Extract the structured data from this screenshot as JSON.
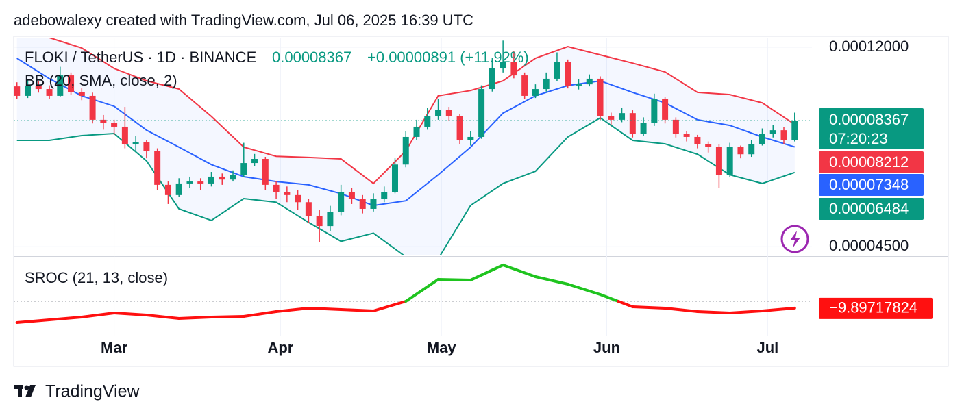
{
  "header": {
    "attribution": "adebowalexy created with TradingView.com, Jul 06, 2025 16:39 UTC",
    "symbol": "FLOKI / TetherUS · 1D · BINANCE",
    "price": 8.367e-05,
    "change": "+0.00000891 (+11.92%)",
    "countdown": "07:20:23"
  },
  "footer": {
    "brand": "TradingView"
  },
  "chart_data": {
    "type": "candlestick",
    "log_scale": true,
    "up_color": "#089981",
    "down_color": "#f23645",
    "xlim": [
      -0.3,
      73.6
    ],
    "ylim": [
      4.31e-05,
      0.0001258
    ],
    "yticks": [
      {
        "value": 0.00012,
        "label": "0.00012000"
      },
      {
        "value": 4.5e-05,
        "label": "0.00004500"
      }
    ],
    "xticks": [
      {
        "value": 9.0,
        "label": "Mar"
      },
      {
        "value": 24.4,
        "label": "Apr"
      },
      {
        "value": 39.3,
        "label": "May"
      },
      {
        "value": 54.6,
        "label": "Jun"
      },
      {
        "value": 69.5,
        "label": "Jul"
      }
    ],
    "candles": [
      [
        9.9e-05,
        0.000101,
        9.3e-05,
        9.45e-05
      ],
      [
        9.45e-05,
        0.000102,
        9.35e-05,
        9.94e-05
      ],
      [
        9.94e-05,
        0.0001015,
        9.6e-05,
        9.77e-05
      ],
      [
        9.77e-05,
        9.95e-05,
        9.3e-05,
        9.45e-05
      ],
      [
        9.45e-05,
        0.000109,
        9.4e-05,
        0.0001045
      ],
      [
        0.0001045,
        0.000106,
        9.5e-05,
        9.61e-05
      ],
      [
        9.61e-05,
        9.8e-05,
        9.25e-05,
        9.45e-05
      ],
      [
        9.45e-05,
        9.6e-05,
        8.25e-05,
        8.4e-05
      ],
      [
        8.4e-05,
        8.6e-05,
        8e-05,
        8.26e-05
      ],
      [
        8.26e-05,
        8.4e-05,
        7.8e-05,
        8.12e-05
      ],
      [
        8.12e-05,
        8.95e-05,
        7.3e-05,
        7.46e-05
      ],
      [
        7.46e-05,
        7.75e-05,
        7.2e-05,
        7.52e-05
      ],
      [
        7.52e-05,
        7.6e-05,
        6.95e-05,
        7.21e-05
      ],
      [
        7.21e-05,
        7.3e-05,
        5.95e-05,
        6.1e-05
      ],
      [
        6.1e-05,
        6.2e-05,
        5.55e-05,
        5.8e-05
      ],
      [
        5.8e-05,
        6.3e-05,
        5.75e-05,
        6.14e-05
      ],
      [
        6.14e-05,
        6.35e-05,
        6e-05,
        6.2e-05
      ],
      [
        6.2e-05,
        6.3e-05,
        5.95e-05,
        6.14e-05
      ],
      [
        6.14e-05,
        6.5e-05,
        6.05e-05,
        6.35e-05
      ],
      [
        6.35e-05,
        6.45e-05,
        6.1e-05,
        6.26e-05
      ],
      [
        6.26e-05,
        6.55e-05,
        6.2e-05,
        6.41e-05
      ],
      [
        6.41e-05,
        7.5e-05,
        6.35e-05,
        6.79e-05
      ],
      [
        6.79e-05,
        7.1e-05,
        6.7e-05,
        6.93e-05
      ],
      [
        6.93e-05,
        7e-05,
        5.95e-05,
        6.1e-05
      ],
      [
        6.1e-05,
        6.2e-05,
        5.7e-05,
        5.89e-05
      ],
      [
        5.89e-05,
        6.05e-05,
        5.6e-05,
        5.8e-05
      ],
      [
        5.8e-05,
        5.95e-05,
        5.4e-05,
        5.6e-05
      ],
      [
        5.6e-05,
        5.7e-05,
        5.05e-05,
        5.24e-05
      ],
      [
        5.24e-05,
        5.4e-05,
        4.6e-05,
        4.98e-05
      ],
      [
        4.98e-05,
        5.5e-05,
        4.85e-05,
        5.33e-05
      ],
      [
        5.33e-05,
        6.1e-05,
        5.25e-05,
        5.89e-05
      ],
      [
        5.89e-05,
        6e-05,
        5.55e-05,
        5.7e-05
      ],
      [
        5.7e-05,
        5.8e-05,
        5.3e-05,
        5.42e-05
      ],
      [
        5.42e-05,
        5.85e-05,
        5.35e-05,
        5.7e-05
      ],
      [
        5.7e-05,
        6.05e-05,
        5.6e-05,
        5.89e-05
      ],
      [
        5.89e-05,
        6.95e-05,
        5.85e-05,
        6.74e-05
      ],
      [
        6.74e-05,
        7.95e-05,
        6.65e-05,
        7.72e-05
      ],
      [
        7.72e-05,
        8.4e-05,
        7.6e-05,
        8.12e-05
      ],
      [
        8.12e-05,
        8.9e-05,
        8e-05,
        8.54e-05
      ],
      [
        8.54e-05,
        9.3e-05,
        8.4e-05,
        8.83e-05
      ],
      [
        8.83e-05,
        8.95e-05,
        8.35e-05,
        8.54e-05
      ],
      [
        8.54e-05,
        8.65e-05,
        7.45e-05,
        7.59e-05
      ],
      [
        7.59e-05,
        7.95e-05,
        7.4e-05,
        7.72e-05
      ],
      [
        7.72e-05,
        9.95e-05,
        7.65e-05,
        9.77e-05
      ],
      [
        9.77e-05,
        0.000114,
        9.65e-05,
        0.0001081
      ],
      [
        0.0001081,
        0.000124,
        0.000106,
        0.0001118
      ],
      [
        0.0001118,
        0.000118,
        0.000103,
        0.0001045
      ],
      [
        0.0001045,
        0.000106,
        9.3e-05,
        9.45e-05
      ],
      [
        9.45e-05,
        0.0001,
        9.35e-05,
        9.77e-05
      ],
      [
        9.77e-05,
        0.000106,
        9.65e-05,
        0.0001028
      ],
      [
        0.0001028,
        0.000117,
        0.0001015,
        0.0001118
      ],
      [
        0.0001118,
        0.000113,
        9.8e-05,
        9.94e-05
      ],
      [
        9.94e-05,
        0.0001025,
        9.75e-05,
        0.0001
      ],
      [
        0.0001,
        0.000105,
        9.9e-05,
        0.0001028
      ],
      [
        0.0001028,
        0.000104,
        8.4e-05,
        8.54e-05
      ],
      [
        8.54e-05,
        8.7e-05,
        8.2e-05,
        8.4e-05
      ],
      [
        8.4e-05,
        8.9e-05,
        8.3e-05,
        8.68e-05
      ],
      [
        8.68e-05,
        8.8e-05,
        7.7e-05,
        7.85e-05
      ],
      [
        7.85e-05,
        8.5e-05,
        7.75e-05,
        8.26e-05
      ],
      [
        8.26e-05,
        9.55e-05,
        8.15e-05,
        9.29e-05
      ],
      [
        9.29e-05,
        9.4e-05,
        8.25e-05,
        8.4e-05
      ],
      [
        8.4e-05,
        8.5e-05,
        7.7e-05,
        7.85e-05
      ],
      [
        7.85e-05,
        7.95e-05,
        7.55e-05,
        7.72e-05
      ],
      [
        7.72e-05,
        7.8e-05,
        7.3e-05,
        7.46e-05
      ],
      [
        7.46e-05,
        7.55e-05,
        7.15e-05,
        7.34e-05
      ],
      [
        7.34e-05,
        7.45e-05,
        6e-05,
        6.41e-05
      ],
      [
        6.41e-05,
        7.5e-05,
        6.35e-05,
        7.34e-05
      ],
      [
        7.34e-05,
        7.4e-05,
        6.95e-05,
        7.09e-05
      ],
      [
        7.09e-05,
        7.6e-05,
        7e-05,
        7.46e-05
      ],
      [
        7.46e-05,
        8.05e-05,
        7.4e-05,
        7.85e-05
      ],
      [
        7.85e-05,
        8.2e-05,
        7.7e-05,
        7.98e-05
      ],
      [
        7.98e-05,
        8.1e-05,
        7.45e-05,
        7.59e-05
      ],
      [
        7.59e-05,
        8.7e-05,
        7.55e-05,
        8.367e-05
      ]
    ],
    "bollinger": {
      "label": "BB (20, SMA, close, 2)",
      "x": [
        0,
        3,
        6,
        9,
        12,
        15,
        18,
        21,
        24,
        27,
        30,
        33,
        36,
        39,
        42,
        45,
        48,
        51,
        54,
        57,
        60,
        63,
        66,
        69,
        72
      ],
      "upper": {
        "color": "#f23645",
        "values": [
          0.0001301,
          0.0001258,
          0.0001196,
          0.0001081,
          0.0001017,
          9.77e-05,
          8.54e-05,
          7.34e-05,
          7.02e-05,
          6.98e-05,
          6.93e-05,
          6.14e-05,
          7.21e-05,
          9.45e-05,
          9.7e-05,
          0.0001017,
          0.0001137,
          0.0001204,
          0.0001156,
          0.000111,
          0.0001063,
          9.61e-05,
          9.51e-05,
          9.13e-05,
          8.212e-05
        ]
      },
      "basis": {
        "color": "#2962ff",
        "values": [
          0.0001137,
          0.0001028,
          9.45e-05,
          8.98e-05,
          7.98e-05,
          7.34e-05,
          6.74e-05,
          6.35e-05,
          6.2e-05,
          6.1e-05,
          5.84e-05,
          5.51e-05,
          5.64e-05,
          6.41e-05,
          7.34e-05,
          8.68e-05,
          9.45e-05,
          9.94e-05,
          0.0001017,
          9.61e-05,
          9.13e-05,
          8.4e-05,
          8.17e-05,
          7.72e-05,
          7.348e-05
        ]
      },
      "lower": {
        "color": "#089981",
        "values": [
          7.59e-05,
          7.59e-05,
          7.77e-05,
          7.85e-05,
          6.86e-05,
          5.42e-05,
          5.12e-05,
          5.7e-05,
          5.6e-05,
          5.07e-05,
          4.62e-05,
          4.81e-05,
          4.28e-05,
          4.24e-05,
          5.51e-05,
          6.14e-05,
          6.52e-05,
          7.72e-05,
          8.48e-05,
          7.59e-05,
          7.46e-05,
          7.09e-05,
          6.41e-05,
          6.14e-05,
          6.484e-05
        ]
      }
    },
    "sroc": {
      "label": "SROC (21, 13, close)",
      "ylim": [
        -50,
        64
      ],
      "up_color": "#1fc41f",
      "down_color": "#ff1010",
      "x": [
        0,
        3,
        6,
        9,
        12,
        15,
        18,
        21,
        24,
        27,
        30,
        33,
        36,
        39,
        42,
        45,
        48,
        51,
        54,
        57,
        60,
        63,
        66,
        69,
        72
      ],
      "values": [
        -31,
        -27,
        -23,
        -17,
        -20,
        -25,
        -23,
        -22,
        -15,
        -10,
        -12,
        -14,
        0,
        32,
        31,
        53,
        36,
        25,
        10,
        -8,
        -10,
        -15,
        -17,
        -14,
        -9.89717824
      ],
      "last_value_label": "−9.89717824"
    }
  }
}
